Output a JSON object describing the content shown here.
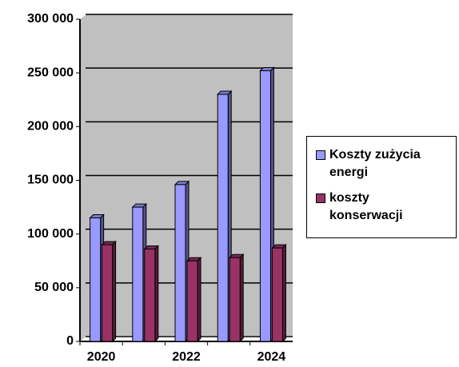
{
  "chart_data": {
    "type": "bar",
    "categories": [
      "2020",
      null,
      "2022",
      null,
      "2024"
    ],
    "series": [
      {
        "name": "Koszty zużycia energi",
        "color": "#9999ff",
        "values": [
          115000,
          125000,
          146000,
          230000,
          252000
        ]
      },
      {
        "name": "koszty konserwacji",
        "color": "#993366",
        "values": [
          90000,
          86000,
          75000,
          78000,
          87000
        ]
      }
    ],
    "ylim": [
      0,
      300000
    ],
    "yticks": [
      0,
      {
        "value": 50000,
        "label": "50 000"
      },
      {
        "value": 100000,
        "label": "100 000"
      },
      {
        "value": 150000,
        "label": "150 000"
      },
      {
        "value": 200000,
        "label": "200 000"
      },
      {
        "value": 250000,
        "label": "250 000"
      },
      {
        "value": 300000,
        "label": "300 000"
      }
    ],
    "grid": true,
    "legend": "right"
  }
}
